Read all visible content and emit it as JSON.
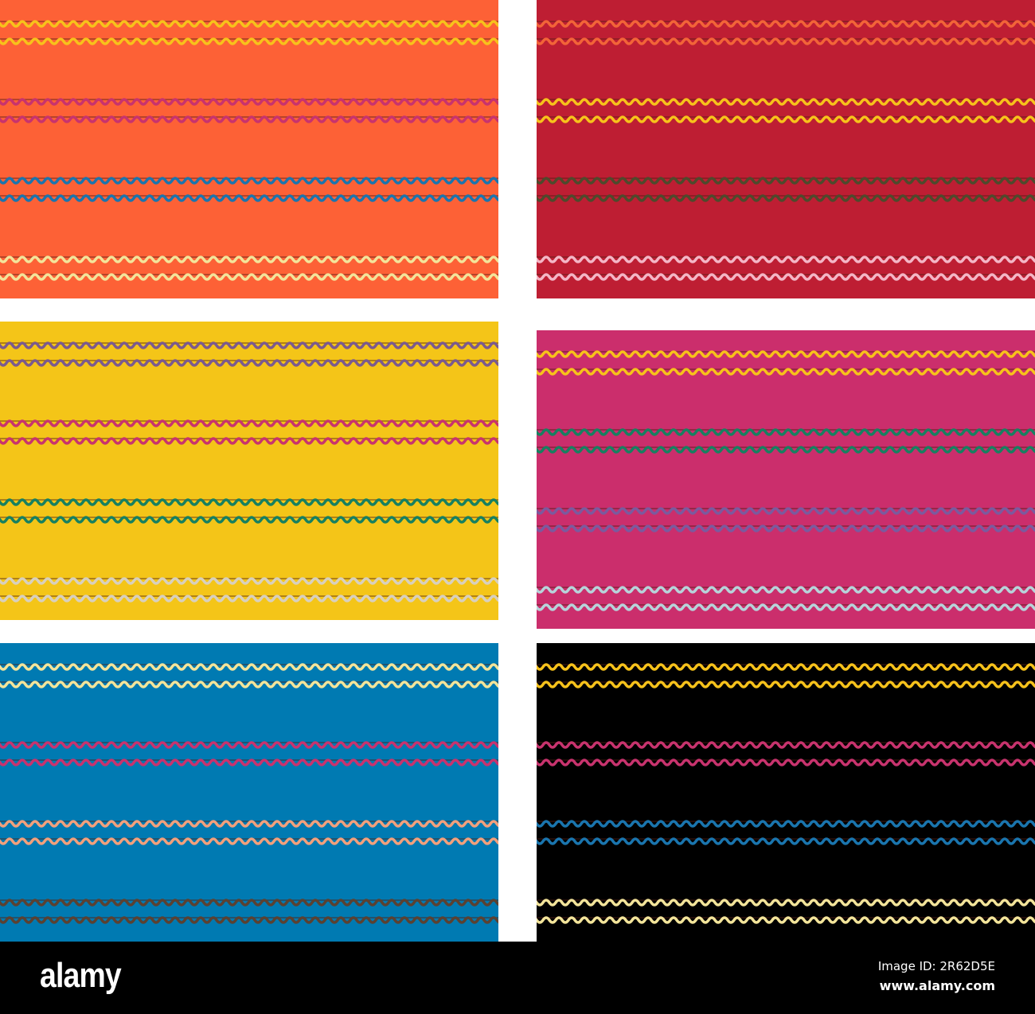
{
  "panels": [
    {
      "background": "#FD6136",
      "stripes": [
        "#F7C21B",
        "#C8336E",
        "#1A75AE",
        "#F3E49A"
      ]
    },
    {
      "background": "#BE1E33",
      "stripes": [
        "#F26438",
        "#F7C21B",
        "#4E4A2C",
        "#F4B6C6"
      ]
    },
    {
      "background": "#F4C518",
      "stripes": [
        "#7B5A8E",
        "#C8336E",
        "#178060",
        "#D8D0BE"
      ]
    },
    {
      "background": "#CB2E6C",
      "stripes": [
        "#F7C21B",
        "#178060",
        "#7B5A9E",
        "#B7D3DA"
      ]
    },
    {
      "background": "#007AB2",
      "stripes": [
        "#F3E49A",
        "#C8336E",
        "#F2A07C",
        "#5B4131"
      ]
    },
    {
      "background": "#000000",
      "stripes": [
        "#F7C21B",
        "#C8336E",
        "#1A75AE",
        "#F3E49A"
      ]
    }
  ],
  "footer": {
    "logo": "alamy",
    "image_id": "Image ID: 2R62D5E",
    "url": "www.alamy.com"
  }
}
